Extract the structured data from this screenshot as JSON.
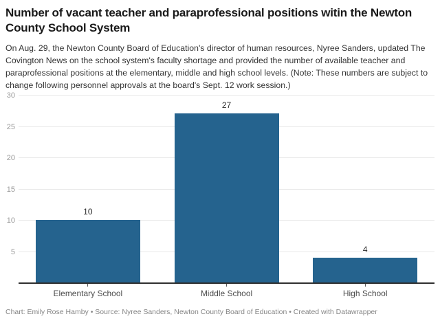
{
  "header": {
    "title": "Number of vacant teacher and paraprofessional positions witin the Newton County School System",
    "description": "On Aug. 29, the Newton County Board of Education's director of human resources, Nyree Sanders, updated The Covington News on the school system's faculty shortage and provided the number of available teacher and paraprofessional positions at the elementary, middle and high school levels. (Note: These numbers are subject to change following personnel approvals at the board's Sept. 12 work session.)"
  },
  "chart_data": {
    "type": "bar",
    "title": "Number of vacant teacher and paraprofessional positions witin the Newton County School System",
    "categories": [
      "Elementary School",
      "Middle School",
      "High School"
    ],
    "values": [
      10,
      27,
      4
    ],
    "xlabel": "",
    "ylabel": "",
    "ylim": [
      0,
      30
    ],
    "yticks": [
      5,
      10,
      15,
      20,
      25,
      30
    ],
    "grid": true,
    "legend": false,
    "value_labels": true,
    "bar_color": "#25638e"
  },
  "colors": {
    "background": "#ffffff",
    "title_text": "#1a1a1a",
    "body_text": "#333333",
    "axis_tick_text": "#9b9b9b",
    "gridline": "#e8e8e8",
    "axis_line": "#2e2e2e",
    "category_text": "#4a4a4a",
    "footer_text": "#868686",
    "bar": "#25638e"
  },
  "footer": {
    "text": "Chart: Emily Rose Hamby • Source: Nyree Sanders, Newton County Board of Education • Created with Datawrapper"
  }
}
